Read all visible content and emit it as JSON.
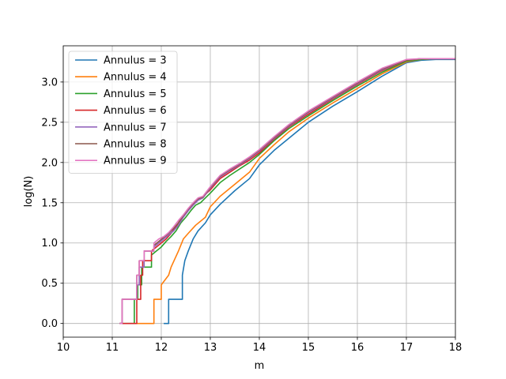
{
  "chart_data": {
    "type": "line",
    "title": "",
    "xlabel": "m",
    "ylabel": "log(N)",
    "xlim": [
      10,
      18
    ],
    "ylim": [
      -0.17,
      3.45
    ],
    "xticks": [
      "10",
      "11",
      "12",
      "13",
      "14",
      "15",
      "16",
      "17",
      "18"
    ],
    "yticks": [
      "0.0",
      "0.5",
      "1.0",
      "1.5",
      "2.0",
      "2.5",
      "3.0"
    ],
    "grid": true,
    "legend_position": "top-left",
    "series": [
      {
        "name": "Annulus = 3",
        "color": "#1f77b4",
        "x": [
          12.05,
          12.15,
          12.15,
          12.43,
          12.43,
          12.48,
          12.55,
          12.65,
          12.75,
          12.9,
          13.0,
          13.2,
          13.5,
          13.8,
          14.0,
          14.3,
          14.6,
          15.0,
          15.5,
          16.0,
          16.5,
          17.0,
          17.3,
          17.6,
          18.0
        ],
        "y": [
          0.0,
          0.0,
          0.3,
          0.3,
          0.6,
          0.78,
          0.9,
          1.05,
          1.15,
          1.25,
          1.35,
          1.48,
          1.65,
          1.8,
          1.97,
          2.15,
          2.3,
          2.5,
          2.7,
          2.88,
          3.07,
          3.24,
          3.27,
          3.28,
          3.28
        ]
      },
      {
        "name": "Annulus = 4",
        "color": "#ff7f0e",
        "x": [
          11.5,
          11.85,
          11.85,
          12.0,
          12.0,
          12.15,
          12.2,
          12.35,
          12.45,
          12.55,
          12.7,
          12.9,
          13.0,
          13.2,
          13.5,
          13.8,
          14.0,
          14.3,
          14.6,
          15.0,
          15.5,
          16.0,
          16.5,
          17.0,
          17.3,
          17.6,
          18.0
        ],
        "y": [
          0.0,
          0.0,
          0.3,
          0.3,
          0.48,
          0.6,
          0.7,
          0.9,
          1.05,
          1.12,
          1.22,
          1.32,
          1.45,
          1.58,
          1.73,
          1.88,
          2.05,
          2.22,
          2.38,
          2.55,
          2.74,
          2.92,
          3.1,
          3.25,
          3.28,
          3.29,
          3.29
        ]
      },
      {
        "name": "Annulus = 5",
        "color": "#2ca02c",
        "x": [
          11.15,
          11.45,
          11.45,
          11.52,
          11.52,
          11.6,
          11.6,
          11.8,
          11.8,
          11.9,
          12.0,
          12.1,
          12.2,
          12.3,
          12.4,
          12.5,
          12.6,
          12.7,
          12.8,
          13.0,
          13.2,
          13.4,
          13.6,
          13.8,
          14.0,
          14.3,
          14.6,
          15.0,
          15.5,
          16.0,
          16.5,
          17.0,
          17.3,
          17.6,
          18.0
        ],
        "y": [
          0.0,
          0.0,
          0.3,
          0.3,
          0.48,
          0.48,
          0.7,
          0.7,
          0.85,
          0.9,
          0.95,
          1.02,
          1.08,
          1.15,
          1.25,
          1.32,
          1.4,
          1.47,
          1.5,
          1.62,
          1.75,
          1.84,
          1.92,
          2.0,
          2.1,
          2.27,
          2.42,
          2.58,
          2.77,
          2.95,
          3.12,
          3.26,
          3.28,
          3.29,
          3.29
        ]
      },
      {
        "name": "Annulus = 6",
        "color": "#d62728",
        "x": [
          11.15,
          11.5,
          11.5,
          11.58,
          11.58,
          11.62,
          11.62,
          11.8,
          11.8,
          11.9,
          12.0,
          12.1,
          12.2,
          12.3,
          12.4,
          12.5,
          12.6,
          12.7,
          12.8,
          13.0,
          13.2,
          13.4,
          13.6,
          13.8,
          14.0,
          14.3,
          14.6,
          15.0,
          15.5,
          16.0,
          16.5,
          17.0,
          17.3,
          17.6,
          18.0
        ],
        "y": [
          0.0,
          0.0,
          0.3,
          0.3,
          0.6,
          0.6,
          0.78,
          0.78,
          0.9,
          0.95,
          1.0,
          1.05,
          1.12,
          1.2,
          1.3,
          1.37,
          1.45,
          1.52,
          1.55,
          1.66,
          1.8,
          1.88,
          1.96,
          2.03,
          2.12,
          2.29,
          2.44,
          2.6,
          2.79,
          2.97,
          3.14,
          3.27,
          3.29,
          3.29,
          3.29
        ]
      },
      {
        "name": "Annulus = 7",
        "color": "#9467bd",
        "x": [
          11.15,
          11.2,
          11.2,
          11.5,
          11.5,
          11.55,
          11.55,
          11.65,
          11.65,
          11.85,
          11.85,
          11.95,
          12.05,
          12.15,
          12.25,
          12.35,
          12.45,
          12.55,
          12.65,
          12.75,
          12.85,
          13.0,
          13.2,
          13.4,
          13.6,
          13.8,
          14.0,
          14.3,
          14.6,
          15.0,
          15.5,
          16.0,
          16.5,
          17.0,
          17.3,
          17.6,
          18.0
        ],
        "y": [
          0.0,
          0.0,
          0.3,
          0.3,
          0.48,
          0.48,
          0.7,
          0.7,
          0.9,
          0.9,
          0.95,
          1.0,
          1.05,
          1.1,
          1.15,
          1.22,
          1.32,
          1.4,
          1.47,
          1.53,
          1.56,
          1.68,
          1.82,
          1.9,
          1.97,
          2.05,
          2.14,
          2.3,
          2.45,
          2.62,
          2.8,
          2.98,
          3.15,
          3.27,
          3.29,
          3.29,
          3.29
        ]
      },
      {
        "name": "Annulus = 8",
        "color": "#8c564b",
        "x": [
          11.15,
          11.2,
          11.2,
          11.5,
          11.5,
          11.55,
          11.55,
          11.65,
          11.65,
          11.85,
          11.85,
          11.95,
          12.05,
          12.15,
          12.25,
          12.35,
          12.45,
          12.55,
          12.65,
          12.75,
          12.85,
          13.0,
          13.2,
          13.4,
          13.6,
          13.8,
          14.0,
          14.3,
          14.6,
          15.0,
          15.5,
          16.0,
          16.5,
          17.0,
          17.3,
          17.6,
          18.0
        ],
        "y": [
          0.0,
          0.0,
          0.3,
          0.3,
          0.6,
          0.6,
          0.78,
          0.78,
          0.9,
          0.9,
          0.97,
          1.02,
          1.07,
          1.12,
          1.18,
          1.25,
          1.34,
          1.42,
          1.49,
          1.55,
          1.57,
          1.69,
          1.83,
          1.91,
          1.98,
          2.06,
          2.15,
          2.31,
          2.46,
          2.63,
          2.81,
          2.99,
          3.16,
          3.27,
          3.29,
          3.29,
          3.29
        ]
      },
      {
        "name": "Annulus = 9",
        "color": "#e377c2",
        "x": [
          11.15,
          11.2,
          11.2,
          11.5,
          11.5,
          11.55,
          11.55,
          11.65,
          11.65,
          11.85,
          11.85,
          11.95,
          12.05,
          12.15,
          12.25,
          12.35,
          12.45,
          12.55,
          12.65,
          12.75,
          12.85,
          13.0,
          13.2,
          13.4,
          13.6,
          13.8,
          14.0,
          14.3,
          14.6,
          15.0,
          15.5,
          16.0,
          16.5,
          17.0,
          17.3,
          17.6,
          18.0
        ],
        "y": [
          0.0,
          0.0,
          0.3,
          0.3,
          0.6,
          0.6,
          0.78,
          0.78,
          0.9,
          0.9,
          1.0,
          1.05,
          1.08,
          1.13,
          1.2,
          1.28,
          1.35,
          1.43,
          1.5,
          1.56,
          1.58,
          1.7,
          1.84,
          1.92,
          1.99,
          2.07,
          2.16,
          2.32,
          2.47,
          2.64,
          2.82,
          3.0,
          3.17,
          3.28,
          3.29,
          3.29,
          3.29
        ]
      }
    ]
  }
}
